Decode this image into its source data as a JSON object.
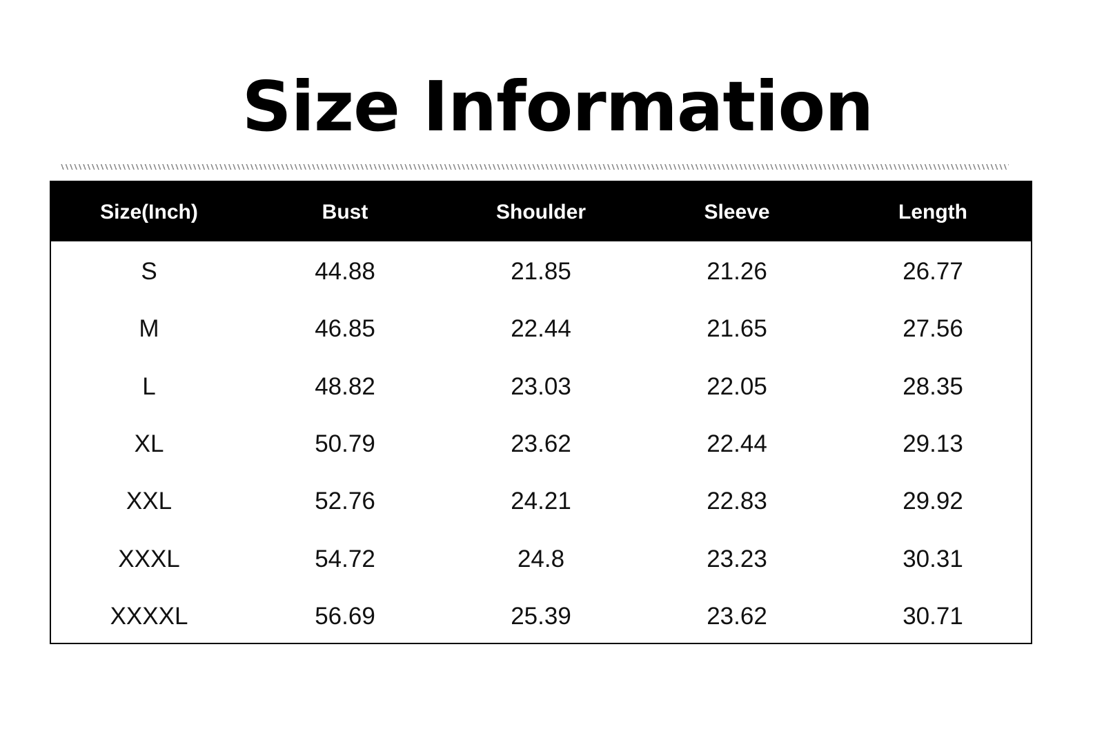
{
  "title": "Size Information",
  "table": {
    "header": [
      "Size(Inch)",
      "Bust",
      "Shoulder",
      "Sleeve",
      "Length"
    ],
    "rows": [
      [
        "S",
        "44.88",
        "21.85",
        "21.26",
        "26.77"
      ],
      [
        "M",
        "46.85",
        "22.44",
        "21.65",
        "27.56"
      ],
      [
        "L",
        "48.82",
        "23.03",
        "22.05",
        "28.35"
      ],
      [
        "XL",
        "50.79",
        "23.62",
        "22.44",
        "29.13"
      ],
      [
        "XXL",
        "52.76",
        "24.21",
        "22.83",
        "29.92"
      ],
      [
        "XXXL",
        "54.72",
        "24.8",
        "23.23",
        "30.31"
      ],
      [
        "XXXXL",
        "56.69",
        "25.39",
        "23.62",
        "30.71"
      ]
    ]
  }
}
